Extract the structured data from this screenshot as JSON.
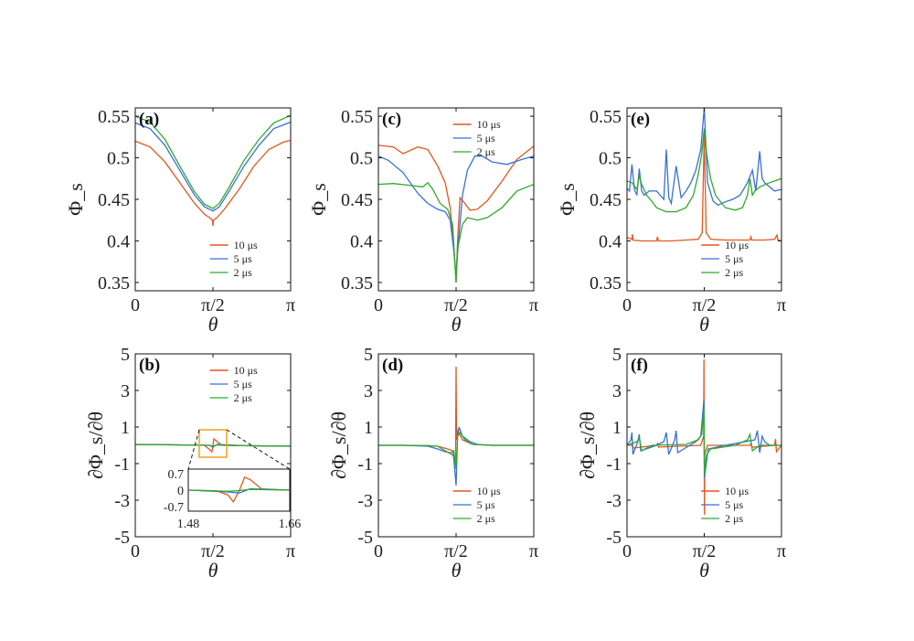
{
  "colors": {
    "s10": "#E2571E",
    "s5": "#3A6FD8",
    "s2": "#2DAA2D",
    "inset_box": "#F0A020"
  },
  "chart_data": [
    {
      "panel": "(a)",
      "type": "line",
      "xlabel": "θ",
      "ylabel": "Φ_s",
      "x_ticks": [
        "0",
        "π/2",
        "π"
      ],
      "y_ticks": [
        "0.35",
        "0.4",
        "0.45",
        "0.5",
        "0.55"
      ],
      "xlim": [
        0,
        3.1416
      ],
      "ylim": [
        0.34,
        0.56
      ],
      "legend": "lower-right",
      "series": [
        {
          "name": "10 μs",
          "color": "#E2571E",
          "x": [
            0,
            0.3,
            0.6,
            0.9,
            1.2,
            1.4,
            1.5,
            1.56,
            1.5708,
            1.58,
            1.65,
            1.8,
            2.1,
            2.4,
            2.7,
            3.0,
            3.1416
          ],
          "y": [
            0.52,
            0.513,
            0.495,
            0.47,
            0.445,
            0.432,
            0.428,
            0.425,
            0.418,
            0.425,
            0.428,
            0.438,
            0.462,
            0.49,
            0.51,
            0.519,
            0.521
          ]
        },
        {
          "name": "5 μs",
          "color": "#3A6FD8",
          "x": [
            0,
            0.3,
            0.6,
            0.9,
            1.2,
            1.4,
            1.5708,
            1.7,
            1.9,
            2.2,
            2.5,
            2.8,
            3.1416
          ],
          "y": [
            0.542,
            0.535,
            0.515,
            0.485,
            0.455,
            0.441,
            0.436,
            0.441,
            0.46,
            0.49,
            0.515,
            0.535,
            0.543
          ]
        },
        {
          "name": "2 μs",
          "color": "#2DAA2D",
          "x": [
            0,
            0.3,
            0.6,
            0.9,
            1.2,
            1.4,
            1.5708,
            1.7,
            1.9,
            2.2,
            2.5,
            2.8,
            3.1416
          ],
          "y": [
            0.55,
            0.543,
            0.522,
            0.49,
            0.459,
            0.444,
            0.439,
            0.445,
            0.465,
            0.497,
            0.522,
            0.542,
            0.551
          ]
        }
      ]
    },
    {
      "panel": "(c)",
      "type": "line",
      "xlabel": "θ",
      "ylabel": "Φ_s",
      "x_ticks": [
        "0",
        "π/2",
        "π"
      ],
      "y_ticks": [
        "0.35",
        "0.4",
        "0.45",
        "0.5",
        "0.55"
      ],
      "xlim": [
        0,
        3.1416
      ],
      "ylim": [
        0.34,
        0.56
      ],
      "legend": "top-right",
      "series": [
        {
          "name": "10 μs",
          "color": "#E2571E",
          "x": [
            0,
            0.3,
            0.5,
            0.8,
            1.0,
            1.2,
            1.35,
            1.45,
            1.5,
            1.55,
            1.5708,
            1.6,
            1.65,
            1.75,
            1.85,
            2.0,
            2.2,
            2.5,
            2.8,
            3.1416
          ],
          "y": [
            0.515,
            0.513,
            0.505,
            0.513,
            0.51,
            0.49,
            0.47,
            0.44,
            0.41,
            0.37,
            0.35,
            0.4,
            0.452,
            0.445,
            0.437,
            0.438,
            0.448,
            0.472,
            0.498,
            0.514
          ]
        },
        {
          "name": "5 μs",
          "color": "#3A6FD8",
          "x": [
            0,
            0.2,
            0.5,
            0.8,
            1.0,
            1.2,
            1.35,
            1.45,
            1.52,
            1.5708,
            1.62,
            1.7,
            1.8,
            1.95,
            2.1,
            2.3,
            2.6,
            2.9,
            3.1416
          ],
          "y": [
            0.502,
            0.497,
            0.482,
            0.457,
            0.445,
            0.438,
            0.435,
            0.425,
            0.39,
            0.36,
            0.4,
            0.455,
            0.485,
            0.502,
            0.502,
            0.495,
            0.492,
            0.498,
            0.502
          ]
        },
        {
          "name": "2 μs",
          "color": "#2DAA2D",
          "x": [
            0,
            0.3,
            0.6,
            0.9,
            1.0,
            1.1,
            1.25,
            1.4,
            1.5,
            1.55,
            1.5708,
            1.6,
            1.7,
            1.8,
            2.0,
            2.2,
            2.5,
            2.8,
            3.1416
          ],
          "y": [
            0.468,
            0.469,
            0.467,
            0.465,
            0.47,
            0.462,
            0.445,
            0.438,
            0.42,
            0.37,
            0.35,
            0.39,
            0.42,
            0.428,
            0.425,
            0.428,
            0.44,
            0.46,
            0.468
          ]
        }
      ]
    },
    {
      "panel": "(e)",
      "type": "line",
      "xlabel": "θ",
      "ylabel": "Φ_s",
      "x_ticks": [
        "0",
        "π/2",
        "π"
      ],
      "y_ticks": [
        "0.35",
        "0.4",
        "0.45",
        "0.5",
        "0.55"
      ],
      "xlim": [
        0,
        3.1416
      ],
      "ylim": [
        0.34,
        0.56
      ],
      "legend": "lower-right",
      "series": [
        {
          "name": "10 μs",
          "color": "#E2571E",
          "x": [
            0,
            0.1,
            0.11,
            0.12,
            0.3,
            0.6,
            0.62,
            0.64,
            0.9,
            1.2,
            1.45,
            1.53,
            1.5708,
            1.61,
            1.7,
            2.0,
            2.5,
            2.52,
            2.54,
            2.8,
            3.0,
            3.05,
            3.07,
            3.1416
          ],
          "y": [
            0.404,
            0.402,
            0.408,
            0.401,
            0.4,
            0.4,
            0.405,
            0.4,
            0.4,
            0.401,
            0.402,
            0.41,
            0.53,
            0.41,
            0.402,
            0.401,
            0.401,
            0.405,
            0.401,
            0.401,
            0.402,
            0.407,
            0.401,
            0.4
          ]
        },
        {
          "name": "5 μs",
          "color": "#3A6FD8",
          "x": [
            0,
            0.05,
            0.1,
            0.15,
            0.2,
            0.25,
            0.3,
            0.35,
            0.45,
            0.6,
            0.75,
            0.8,
            0.85,
            0.9,
            1.0,
            1.1,
            1.2,
            1.3,
            1.4,
            1.5,
            1.5708,
            1.64,
            1.75,
            1.85,
            2.0,
            2.15,
            2.3,
            2.45,
            2.55,
            2.62,
            2.7,
            2.75,
            2.8,
            2.9,
            3.0,
            3.1416
          ],
          "y": [
            0.463,
            0.46,
            0.492,
            0.462,
            0.455,
            0.487,
            0.46,
            0.455,
            0.46,
            0.46,
            0.45,
            0.51,
            0.452,
            0.445,
            0.49,
            0.452,
            0.46,
            0.47,
            0.485,
            0.51,
            0.56,
            0.47,
            0.448,
            0.443,
            0.447,
            0.45,
            0.455,
            0.47,
            0.485,
            0.46,
            0.508,
            0.475,
            0.47,
            0.465,
            0.46,
            0.462
          ]
        },
        {
          "name": "2 μs",
          "color": "#2DAA2D",
          "x": [
            0,
            0.1,
            0.2,
            0.25,
            0.3,
            0.4,
            0.5,
            0.6,
            0.8,
            1.0,
            1.2,
            1.35,
            1.45,
            1.52,
            1.5708,
            1.62,
            1.7,
            1.8,
            2.0,
            2.2,
            2.35,
            2.45,
            2.5,
            2.55,
            2.6,
            2.7,
            2.9,
            3.1416
          ],
          "y": [
            0.472,
            0.47,
            0.462,
            0.478,
            0.468,
            0.455,
            0.448,
            0.44,
            0.435,
            0.435,
            0.44,
            0.455,
            0.48,
            0.505,
            0.535,
            0.505,
            0.475,
            0.455,
            0.44,
            0.437,
            0.44,
            0.455,
            0.475,
            0.455,
            0.46,
            0.465,
            0.47,
            0.475
          ]
        }
      ]
    },
    {
      "panel": "(b)",
      "type": "line",
      "xlabel": "θ",
      "ylabel": "∂Φ_s/∂θ",
      "x_ticks": [
        "0",
        "π/2",
        "π"
      ],
      "y_ticks": [
        "-5",
        "-3",
        "-1",
        "1",
        "3",
        "5"
      ],
      "xlim": [
        0,
        3.1416
      ],
      "ylim": [
        -5,
        5
      ],
      "legend": "top-right",
      "series": [
        {
          "name": "10 μs",
          "color": "#E2571E",
          "x": [
            0,
            0.5,
            1.0,
            1.4,
            1.55,
            1.5708,
            1.59,
            1.75,
            2.2,
            2.7,
            3.1416
          ],
          "y": [
            0.05,
            0.04,
            0.02,
            0.0,
            -0.35,
            0.0,
            0.35,
            0.0,
            -0.02,
            -0.04,
            -0.05
          ]
        },
        {
          "name": "5 μs",
          "color": "#3A6FD8",
          "x": [
            0,
            0.5,
            1.0,
            1.5,
            1.5708,
            1.65,
            2.2,
            2.7,
            3.1416
          ],
          "y": [
            0.04,
            0.03,
            0.02,
            0.0,
            -0.1,
            0.05,
            -0.02,
            -0.03,
            -0.04
          ]
        },
        {
          "name": "2 μs",
          "color": "#2DAA2D",
          "x": [
            0,
            0.5,
            1.0,
            1.5,
            1.5708,
            1.65,
            2.2,
            2.7,
            3.1416
          ],
          "y": [
            0.04,
            0.035,
            0.02,
            0.0,
            -0.05,
            0.02,
            -0.02,
            -0.035,
            -0.04
          ]
        }
      ],
      "inset": {
        "xlim": [
          1.48,
          1.66
        ],
        "ylim": [
          -0.9,
          0.9
        ],
        "x_ticks": [
          "1.48",
          "1.66"
        ],
        "y_ticks": [
          "0.7",
          "0",
          "-0.7"
        ],
        "series": [
          {
            "name": "10 μs",
            "color": "#E2571E",
            "x": [
              1.48,
              1.53,
              1.55,
              1.56,
              1.5708,
              1.58,
              1.59,
              1.61,
              1.66
            ],
            "y": [
              0.0,
              -0.03,
              -0.2,
              -0.5,
              0.0,
              0.55,
              0.45,
              0.05,
              0.0
            ]
          },
          {
            "name": "5 μs",
            "color": "#3A6FD8",
            "x": [
              1.48,
              1.55,
              1.5708,
              1.59,
              1.66
            ],
            "y": [
              0.0,
              -0.08,
              -0.12,
              0.06,
              0.0
            ]
          },
          {
            "name": "2 μs",
            "color": "#2DAA2D",
            "x": [
              1.48,
              1.55,
              1.5708,
              1.59,
              1.66
            ],
            "y": [
              0.0,
              -0.05,
              -0.02,
              0.03,
              0.0
            ]
          }
        ]
      }
    },
    {
      "panel": "(d)",
      "type": "line",
      "xlabel": "θ",
      "ylabel": "∂Φ_s/∂θ",
      "x_ticks": [
        "0",
        "π/2",
        "π"
      ],
      "y_ticks": [
        "-5",
        "-3",
        "-1",
        "1",
        "3",
        "5"
      ],
      "xlim": [
        0,
        3.1416
      ],
      "ylim": [
        -5,
        5
      ],
      "legend": "lower-right",
      "series": [
        {
          "name": "10 μs",
          "color": "#E2571E",
          "x": [
            0,
            0.5,
            1.0,
            1.2,
            1.4,
            1.5,
            1.56,
            1.5708,
            1.58,
            1.6,
            1.7,
            1.9,
            2.3,
            3.1416
          ],
          "y": [
            0.0,
            0.0,
            -0.02,
            -0.05,
            -0.2,
            -0.3,
            -0.9,
            4.3,
            0.3,
            0.8,
            0.3,
            0.05,
            0.0,
            0.0
          ]
        },
        {
          "name": "5 μs",
          "color": "#3A6FD8",
          "x": [
            0,
            0.5,
            1.0,
            1.2,
            1.35,
            1.45,
            1.52,
            1.5708,
            1.6,
            1.63,
            1.7,
            1.85,
            2.0,
            2.3,
            3.1416
          ],
          "y": [
            0.0,
            0.0,
            -0.05,
            -0.2,
            -0.35,
            -0.4,
            -0.6,
            -2.2,
            0.4,
            1.0,
            0.5,
            0.2,
            0.05,
            0.0,
            0.0
          ]
        },
        {
          "name": "2 μs",
          "color": "#2DAA2D",
          "x": [
            0,
            0.5,
            1.0,
            1.2,
            1.35,
            1.45,
            1.52,
            1.5708,
            1.6,
            1.65,
            1.75,
            1.9,
            2.3,
            3.1416
          ],
          "y": [
            0.0,
            0.0,
            -0.02,
            -0.05,
            -0.3,
            -0.45,
            -0.3,
            -1.3,
            0.5,
            0.7,
            0.3,
            0.05,
            0.0,
            0.0
          ]
        }
      ]
    },
    {
      "panel": "(f)",
      "type": "line",
      "xlabel": "θ",
      "ylabel": "∂Φ_s/∂θ",
      "x_ticks": [
        "0",
        "π/2",
        "π"
      ],
      "y_ticks": [
        "-5",
        "-3",
        "-1",
        "1",
        "3",
        "5"
      ],
      "xlim": [
        0,
        3.1416
      ],
      "ylim": [
        -5,
        5
      ],
      "legend": "lower-right",
      "series": [
        {
          "name": "10 μs",
          "color": "#E2571E",
          "x": [
            0,
            0.1,
            0.11,
            0.12,
            0.6,
            0.62,
            0.64,
            1.5,
            1.56,
            1.565,
            1.575,
            1.58,
            1.64,
            2.5,
            2.52,
            2.54,
            3.0,
            3.02,
            3.04,
            3.1416
          ],
          "y": [
            0.0,
            0.0,
            0.15,
            -0.15,
            0.0,
            0.1,
            -0.1,
            0.0,
            0.5,
            4.7,
            -3.8,
            -0.5,
            0.0,
            0.0,
            0.1,
            -0.1,
            0.0,
            0.35,
            -0.35,
            0.0
          ]
        },
        {
          "name": "5 μs",
          "color": "#3A6FD8",
          "x": [
            0,
            0.08,
            0.1,
            0.12,
            0.22,
            0.25,
            0.28,
            0.6,
            0.75,
            0.8,
            0.85,
            0.97,
            1.0,
            1.03,
            1.4,
            1.5,
            1.565,
            1.575,
            1.65,
            2.0,
            2.6,
            2.65,
            2.7,
            2.75,
            2.8,
            2.9,
            3.1416
          ],
          "y": [
            0.0,
            0.3,
            0.7,
            -0.5,
            0.2,
            0.6,
            -0.3,
            0.0,
            0.2,
            0.7,
            -0.5,
            0.3,
            0.8,
            -0.4,
            0.2,
            0.5,
            2.5,
            -1.8,
            -0.2,
            0.0,
            0.3,
            0.8,
            -0.4,
            0.5,
            0.2,
            0.0,
            0.0
          ]
        },
        {
          "name": "2 μs",
          "color": "#2DAA2D",
          "x": [
            0,
            0.2,
            0.25,
            0.3,
            0.5,
            1.2,
            1.45,
            1.52,
            1.565,
            1.575,
            1.62,
            1.7,
            2.2,
            2.45,
            2.5,
            2.55,
            2.7,
            3.1416
          ],
          "y": [
            0.0,
            0.2,
            0.4,
            -0.3,
            0.0,
            0.05,
            0.3,
            0.6,
            2.0,
            -1.6,
            -0.5,
            -0.2,
            0.0,
            0.3,
            0.6,
            -0.3,
            0.0,
            0.0
          ]
        }
      ]
    }
  ]
}
